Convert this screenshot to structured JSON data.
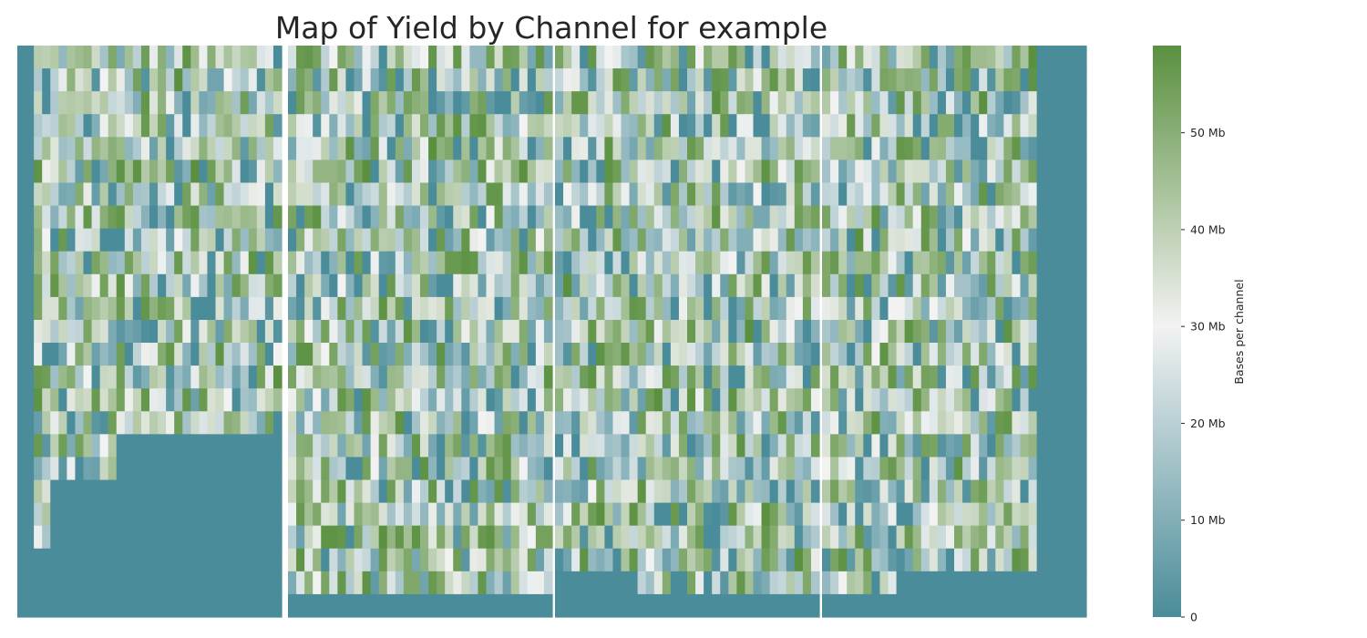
{
  "chart_data": {
    "type": "heatmap",
    "title": "Map of Yield by Channel for example",
    "colorbar": {
      "label": "Bases per channel",
      "range": [
        0,
        59
      ],
      "tick_values": [
        0,
        10,
        20,
        30,
        40,
        50
      ],
      "tick_labels": [
        "0",
        "10 Mb",
        "20 Mb",
        "30 Mb",
        "40 Mb",
        "50 Mb"
      ],
      "colors": {
        "low": "#4a8c99",
        "mid": "#f2f2f2",
        "high": "#5a903f"
      }
    },
    "grid": false,
    "panels": [
      {
        "rows": 25,
        "cols": 32,
        "pattern": "lower-left-empty",
        "values_note": "estimated"
      },
      {
        "rows": 25,
        "cols": 32,
        "pattern": "bottom-row-empty",
        "values_note": "estimated"
      },
      {
        "rows": 25,
        "cols": 32,
        "pattern": "bottom-left-empty",
        "values_note": "estimated"
      },
      {
        "rows": 25,
        "cols": 32,
        "pattern": "right-columns-empty",
        "values_note": "estimated"
      }
    ]
  }
}
